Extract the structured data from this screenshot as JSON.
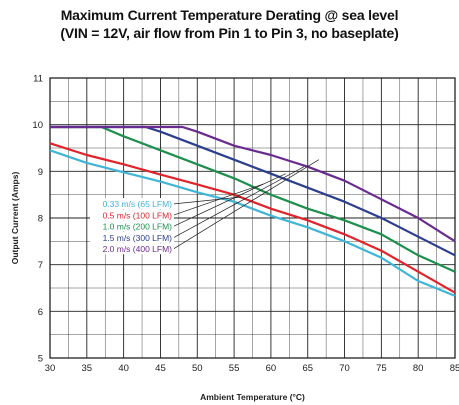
{
  "chart_data": {
    "type": "line",
    "title": "Maximum Current Temperature Derating @ sea level",
    "subtitle": "(VIN = 12V, air flow from Pin 1 to Pin 3, no baseplate)",
    "xlabel": "Ambient Temperature (°C)",
    "ylabel": "Output Current (Amps)",
    "xlim": [
      30,
      85
    ],
    "ylim": [
      5,
      11
    ],
    "x_ticks": [
      "30",
      "35",
      "40",
      "45",
      "50",
      "55",
      "60",
      "65",
      "70",
      "75",
      "80",
      "85"
    ],
    "y_ticks": [
      "5",
      "6",
      "7",
      "8",
      "9",
      "10",
      "11"
    ],
    "grid": true,
    "legend_position": "center",
    "series": [
      {
        "name": "0.33 m/s (65 LFM)",
        "color": "#3fb5d8",
        "x": [
          30,
          35,
          40,
          45,
          50,
          55,
          60,
          65,
          70,
          75,
          80,
          85
        ],
        "y": [
          9.45,
          9.18,
          8.98,
          8.78,
          8.55,
          8.35,
          8.05,
          7.8,
          7.5,
          7.15,
          6.65,
          6.33
        ]
      },
      {
        "name": "0.5 m/s (100 LFM)",
        "color": "#e0242b",
        "x": [
          30,
          35,
          40,
          45,
          50,
          55,
          60,
          65,
          70,
          75,
          80,
          85
        ],
        "y": [
          9.6,
          9.35,
          9.15,
          8.93,
          8.72,
          8.5,
          8.2,
          7.95,
          7.65,
          7.3,
          6.85,
          6.4
        ]
      },
      {
        "name": "1.0 m/s (200 LFM)",
        "color": "#1f8f4e",
        "x": [
          30,
          33.5,
          37,
          40,
          45,
          50,
          55,
          60,
          65,
          70,
          75,
          80,
          85
        ],
        "y": [
          9.95,
          9.95,
          9.95,
          9.75,
          9.45,
          9.15,
          8.85,
          8.5,
          8.2,
          7.95,
          7.65,
          7.2,
          6.85
        ]
      },
      {
        "name": "1.5 m/s (300 LFM)",
        "color": "#2c3f8f",
        "x": [
          30,
          35,
          40,
          43,
          45,
          50,
          55,
          60,
          65,
          70,
          75,
          80,
          85
        ],
        "y": [
          9.95,
          9.95,
          9.95,
          9.95,
          9.85,
          9.55,
          9.25,
          8.95,
          8.65,
          8.35,
          8.0,
          7.6,
          7.2
        ]
      },
      {
        "name": "2.0 m/s (400 LFM)",
        "color": "#6a2b91",
        "x": [
          30,
          35,
          40,
          45,
          48,
          50,
          55,
          60,
          65,
          70,
          75,
          80,
          85
        ],
        "y": [
          9.95,
          9.95,
          9.95,
          9.95,
          9.95,
          9.85,
          9.55,
          9.35,
          9.1,
          8.8,
          8.4,
          8.0,
          7.5
        ]
      }
    ]
  }
}
